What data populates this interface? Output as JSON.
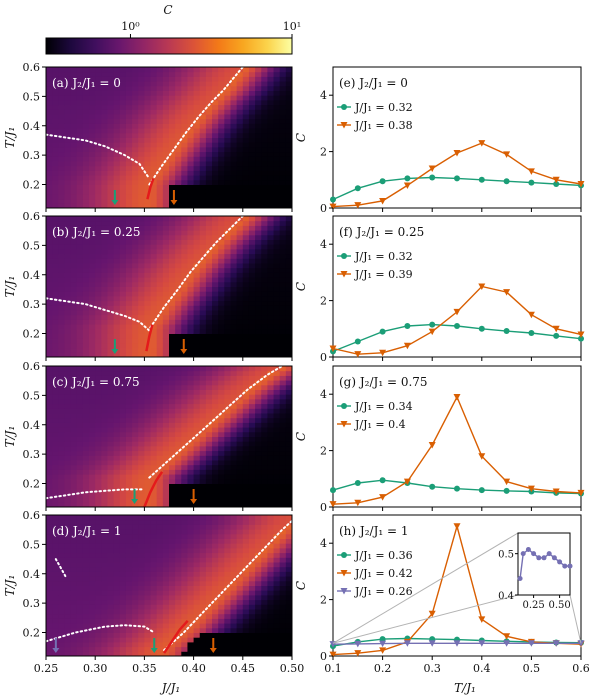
{
  "colorbar": {
    "label": "C",
    "scale": "log",
    "range": [
      0.3,
      10
    ],
    "ticks": [
      {
        "value": 1,
        "label": "10⁰"
      },
      {
        "value": 10,
        "label": "10¹"
      }
    ],
    "colormap": "inferno"
  },
  "colors": {
    "teal": "#1b9e77",
    "orange": "#d95f02",
    "purple": "#7570b3",
    "red": "#e41a1c",
    "guide": "#b3b3b3"
  },
  "heatmap_axes": {
    "xlabel": "J/J₁",
    "ylabel": "T/J₁",
    "xlim": [
      0.25,
      0.5
    ],
    "ylim": [
      0.12,
      0.6
    ],
    "xticks": [
      "0.25",
      "0.30",
      "0.35",
      "0.40",
      "0.45",
      "0.50"
    ],
    "yticks": [
      "0.2",
      "0.3",
      "0.4",
      "0.5",
      "0.6"
    ]
  },
  "curve_axes": {
    "xlabel": "T/J₁",
    "ylabel": "C",
    "xlim": [
      0.1,
      0.6
    ],
    "ylim": [
      0,
      5
    ],
    "xticks": [
      "0.1",
      "0.2",
      "0.3",
      "0.4",
      "0.5",
      "0.6"
    ],
    "yticks": [
      "0",
      "2",
      "4"
    ]
  },
  "chart_data": [
    {
      "type": "heatmap",
      "panel": "(a)",
      "label": "J₂/J₁ = 0",
      "ridge_J": [
        0.355,
        0.367,
        0.38,
        0.393,
        0.405,
        0.418,
        0.43,
        0.44,
        0.45
      ],
      "ridge_T": [
        0.2,
        0.26,
        0.32,
        0.38,
        0.43,
        0.48,
        0.52,
        0.56,
        0.6
      ],
      "low_J": [
        0.25,
        0.27,
        0.29,
        0.31,
        0.33,
        0.345,
        0.355
      ],
      "low_T": [
        0.37,
        0.36,
        0.35,
        0.33,
        0.3,
        0.27,
        0.22
      ],
      "red_J": [
        0.353,
        0.356,
        0.359
      ],
      "red_T": [
        0.15,
        0.19,
        0.22
      ],
      "arrow_teal_J": 0.32,
      "arrow_orange_J": 0.38
    },
    {
      "type": "heatmap",
      "panel": "(b)",
      "label": "J₂/J₁ = 0.25",
      "ridge_J": [
        0.356,
        0.37,
        0.384,
        0.397,
        0.41,
        0.423,
        0.435,
        0.45
      ],
      "ridge_T": [
        0.22,
        0.29,
        0.35,
        0.41,
        0.46,
        0.51,
        0.55,
        0.6
      ],
      "low_J": [
        0.25,
        0.27,
        0.29,
        0.31,
        0.33,
        0.345,
        0.355
      ],
      "low_T": [
        0.32,
        0.31,
        0.3,
        0.28,
        0.26,
        0.24,
        0.21
      ],
      "red_J": [
        0.352,
        0.355,
        0.358
      ],
      "red_T": [
        0.14,
        0.19,
        0.23
      ],
      "arrow_teal_J": 0.32,
      "arrow_orange_J": 0.39
    },
    {
      "type": "heatmap",
      "panel": "(c)",
      "label": "J₂/J₁ = 0.75",
      "ridge_J": [
        0.355,
        0.375,
        0.395,
        0.415,
        0.435,
        0.455,
        0.475,
        0.49
      ],
      "ridge_T": [
        0.22,
        0.28,
        0.34,
        0.4,
        0.46,
        0.52,
        0.57,
        0.6
      ],
      "low_J": [
        0.25,
        0.27,
        0.29,
        0.31,
        0.33,
        0.35
      ],
      "low_T": [
        0.15,
        0.16,
        0.17,
        0.175,
        0.18,
        0.18
      ],
      "red_J": [
        0.35,
        0.356,
        0.362,
        0.368
      ],
      "red_T": [
        0.12,
        0.17,
        0.21,
        0.24
      ],
      "arrow_teal_J": 0.34,
      "arrow_orange_J": 0.4
    },
    {
      "type": "heatmap",
      "panel": "(d)",
      "label": "J₂/J₁ = 1",
      "ridge_J": [
        0.37,
        0.39,
        0.41,
        0.43,
        0.45,
        0.47,
        0.49,
        0.5
      ],
      "ridge_T": [
        0.14,
        0.2,
        0.27,
        0.34,
        0.41,
        0.48,
        0.55,
        0.58
      ],
      "low_J": [
        0.25,
        0.28,
        0.31,
        0.33,
        0.35,
        0.36
      ],
      "low_T": [
        0.17,
        0.2,
        0.22,
        0.225,
        0.22,
        0.2
      ],
      "extra_J": [
        0.26,
        0.265,
        0.27
      ],
      "extra_T": [
        0.45,
        0.42,
        0.39
      ],
      "red_J": [
        0.37,
        0.378,
        0.386,
        0.394
      ],
      "red_T": [
        0.13,
        0.17,
        0.21,
        0.24
      ],
      "arrow_teal_J": 0.36,
      "arrow_orange_J": 0.42,
      "arrow_purple_J": 0.26
    },
    {
      "type": "line",
      "panel": "(e)",
      "label": "J₂/J₁ = 0",
      "x": [
        0.1,
        0.15,
        0.2,
        0.25,
        0.3,
        0.35,
        0.4,
        0.45,
        0.5,
        0.55,
        0.6
      ],
      "series": [
        {
          "name": "J/J₁ = 0.32",
          "values": [
            0.3,
            0.7,
            0.95,
            1.05,
            1.08,
            1.05,
            1.0,
            0.95,
            0.9,
            0.85,
            0.8
          ]
        },
        {
          "name": "J/J₁ = 0.38",
          "values": [
            0.05,
            0.1,
            0.25,
            0.8,
            1.4,
            1.95,
            2.3,
            1.9,
            1.3,
            1.0,
            0.85
          ]
        }
      ]
    },
    {
      "type": "line",
      "panel": "(f)",
      "label": "J₂/J₁ = 0.25",
      "x": [
        0.1,
        0.15,
        0.2,
        0.25,
        0.3,
        0.35,
        0.4,
        0.45,
        0.5,
        0.55,
        0.6
      ],
      "series": [
        {
          "name": "J/J₁ = 0.32",
          "values": [
            0.2,
            0.55,
            0.9,
            1.1,
            1.15,
            1.1,
            1.0,
            0.92,
            0.85,
            0.75,
            0.65
          ]
        },
        {
          "name": "J/J₁ = 0.39",
          "values": [
            0.3,
            0.1,
            0.15,
            0.4,
            0.9,
            1.6,
            2.5,
            2.3,
            1.5,
            1.0,
            0.8
          ]
        }
      ]
    },
    {
      "type": "line",
      "panel": "(g)",
      "label": "J₂/J₁ = 0.75",
      "x": [
        0.1,
        0.15,
        0.2,
        0.25,
        0.3,
        0.35,
        0.4,
        0.45,
        0.5,
        0.55,
        0.6
      ],
      "series": [
        {
          "name": "J/J₁ = 0.34",
          "values": [
            0.6,
            0.85,
            0.95,
            0.85,
            0.72,
            0.65,
            0.6,
            0.57,
            0.55,
            0.5,
            0.48
          ]
        },
        {
          "name": "J/J₁ = 0.4",
          "values": [
            0.1,
            0.15,
            0.35,
            0.9,
            2.2,
            3.9,
            1.8,
            0.9,
            0.65,
            0.55,
            0.5
          ]
        }
      ]
    },
    {
      "type": "line",
      "panel": "(h)",
      "label": "J₂/J₁ = 1",
      "x": [
        0.1,
        0.15,
        0.2,
        0.25,
        0.3,
        0.35,
        0.4,
        0.45,
        0.5,
        0.55,
        0.6
      ],
      "series": [
        {
          "name": "J/J₁ = 0.36",
          "values": [
            0.35,
            0.5,
            0.6,
            0.62,
            0.6,
            0.58,
            0.55,
            0.52,
            0.5,
            0.48,
            0.47
          ]
        },
        {
          "name": "J/J₁ = 0.42",
          "values": [
            0.05,
            0.1,
            0.2,
            0.5,
            1.5,
            4.6,
            1.3,
            0.7,
            0.5,
            0.45,
            0.42
          ]
        },
        {
          "name": "J/J₁ = 0.26",
          "values": [
            0.42,
            0.43,
            0.44,
            0.45,
            0.45,
            0.45,
            0.45,
            0.45,
            0.45,
            0.45,
            0.45
          ]
        }
      ],
      "inset": {
        "xticks": [
          "0.25",
          "0.50"
        ],
        "yticks": [
          "0.4",
          "0.5"
        ],
        "xlim": [
          0.1,
          0.6
        ],
        "ylim": [
          0.4,
          0.55
        ],
        "x": [
          0.12,
          0.15,
          0.2,
          0.25,
          0.3,
          0.35,
          0.4,
          0.45,
          0.5,
          0.55,
          0.6
        ],
        "values": [
          0.44,
          0.5,
          0.51,
          0.5,
          0.49,
          0.49,
          0.5,
          0.49,
          0.48,
          0.47,
          0.47
        ]
      }
    }
  ]
}
